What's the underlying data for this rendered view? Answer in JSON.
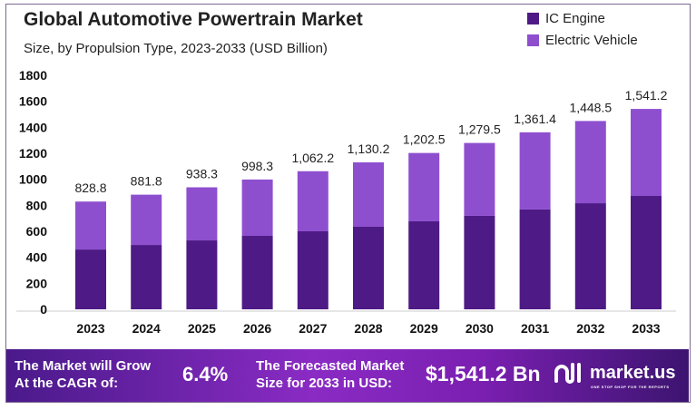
{
  "chart_data": {
    "type": "bar",
    "stacked": true,
    "title": "Global Automotive Powertrain Market",
    "subtitle": "Size, by Propulsion Type, 2023-2033 (USD Billion)",
    "categories": [
      "2023",
      "2024",
      "2025",
      "2026",
      "2027",
      "2028",
      "2029",
      "2030",
      "2031",
      "2032",
      "2033"
    ],
    "totals": [
      828.8,
      881.8,
      938.3,
      998.3,
      1062.2,
      1130.2,
      1202.5,
      1279.5,
      1361.4,
      1448.5,
      1541.2
    ],
    "total_labels": [
      "828.8",
      "881.8",
      "938.3",
      "998.3",
      "1,062.2",
      "1,130.2",
      "1,202.5",
      "1,279.5",
      "1,361.4",
      "1,448.5",
      "1,541.2"
    ],
    "series": [
      {
        "name": "IC Engine",
        "color": "#4e1a85",
        "values": [
          460,
          495,
          530,
          565,
          600,
          635,
          677,
          719,
          768,
          816,
          872
        ]
      },
      {
        "name": "Electric Vehicle",
        "color": "#8e4fcf",
        "values": [
          368.8,
          386.8,
          408.3,
          433.3,
          462.2,
          495.2,
          525.5,
          560.5,
          593.4,
          632.5,
          669.2
        ]
      }
    ],
    "yticks": [
      0,
      200,
      400,
      600,
      800,
      1000,
      1200,
      1400,
      1600,
      1800
    ],
    "ylim": [
      0,
      1800
    ],
    "xlabel": "",
    "ylabel": "",
    "legend_position": "top-right",
    "grid": false
  },
  "footer": {
    "cagr_label": "The Market will Grow At the CAGR of:",
    "cagr_line1": "The Market will Grow",
    "cagr_line2": "At the CAGR of:",
    "cagr_value": "6.4%",
    "forecast_line1": "The Forecasted Market",
    "forecast_line2": "Size for 2033 in USD:",
    "forecast_value": "$1,541.2 Bn",
    "brand": "market.us",
    "brand_tagline": "ONE STOP SHOP FOR THE REPORTS"
  }
}
